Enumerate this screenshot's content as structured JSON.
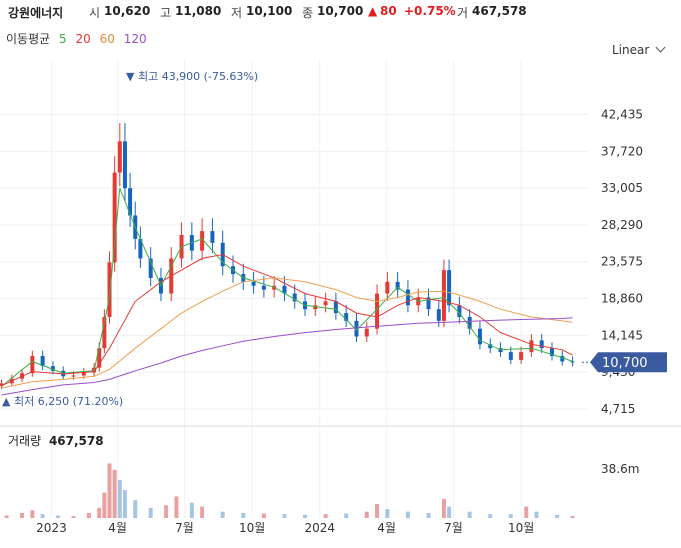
{
  "header": {
    "name": "강원에너지",
    "open_label": "시",
    "open": "10,620",
    "high_label": "고",
    "high": "11,080",
    "low_label": "저",
    "low": "10,100",
    "close_label": "종",
    "close": "10,700",
    "change": "80",
    "change_pct": "+0.75%",
    "volume_label": "거",
    "volume": "467,578"
  },
  "ma": {
    "label": "이동평균",
    "p5": "5",
    "p20": "20",
    "p60": "60",
    "p120": "120",
    "colors": {
      "p5": "#3cb043",
      "p20": "#e53935",
      "p60": "#f0a050",
      "p120": "#9c4dcc"
    }
  },
  "scale_mode": "Linear",
  "price_badge": "10,700",
  "annotations": {
    "high_text": "최고 43,900 (-75.63%)",
    "low_text": "최저 6,250 (71.20%)"
  },
  "volume_panel": {
    "title": "거래량",
    "value": "467,578",
    "axis_label": "38.6m"
  },
  "colors": {
    "up": "#e53935",
    "down": "#1565c0",
    "badge": "#3a5ba0",
    "vol_up": "#e8a0a0",
    "vol_down": "#a8c4e4"
  },
  "chart_data": {
    "type": "candlestick",
    "y_ticks": [
      "42,435",
      "37,720",
      "33,005",
      "28,290",
      "23,575",
      "18,860",
      "14,145",
      "9,430",
      "4,715"
    ],
    "y_tick_values": [
      42435,
      37720,
      33005,
      28290,
      23575,
      18860,
      14145,
      9430,
      4715
    ],
    "ylim": [
      3300,
      47500
    ],
    "x_ticks": [
      "2023",
      "4월",
      "7월",
      "10월",
      "2024",
      "4월",
      "7월",
      "10월"
    ],
    "x_tick_dates": [
      "2023-01-01",
      "2023-04-01",
      "2023-07-01",
      "2023-10-01",
      "2024-01-01",
      "2024-04-01",
      "2024-07-01",
      "2024-10-01"
    ],
    "xlim": [
      "2022-10-23",
      "2024-12-31"
    ],
    "candles": [
      {
        "date": "2022-10-25",
        "close": 8000
      },
      {
        "date": "2022-11-08",
        "close": 8600
      },
      {
        "date": "2022-11-22",
        "close": 9300
      },
      {
        "date": "2022-12-06",
        "close": 11500
      },
      {
        "date": "2022-12-20",
        "close": 10200
      },
      {
        "date": "2023-01-03",
        "close": 9600
      },
      {
        "date": "2023-01-17",
        "close": 8900
      },
      {
        "date": "2023-01-31",
        "close": 9000
      },
      {
        "date": "2023-02-14",
        "close": 9400
      },
      {
        "date": "2023-02-28",
        "close": 10000
      },
      {
        "date": "2023-03-07",
        "close": 12500
      },
      {
        "date": "2023-03-14",
        "close": 16500
      },
      {
        "date": "2023-03-21",
        "close": 23500
      },
      {
        "date": "2023-03-28",
        "close": 35000
      },
      {
        "date": "2023-04-04",
        "close": 39000
      },
      {
        "date": "2023-04-11",
        "close": 33000
      },
      {
        "date": "2023-04-18",
        "close": 29500
      },
      {
        "date": "2023-04-25",
        "close": 26500
      },
      {
        "date": "2023-05-02",
        "close": 24000
      },
      {
        "date": "2023-05-16",
        "close": 21500
      },
      {
        "date": "2023-05-30",
        "close": 19500
      },
      {
        "date": "2023-06-13",
        "close": 24000
      },
      {
        "date": "2023-06-27",
        "close": 27000
      },
      {
        "date": "2023-07-11",
        "close": 25000
      },
      {
        "date": "2023-07-25",
        "close": 27500
      },
      {
        "date": "2023-08-08",
        "close": 26000
      },
      {
        "date": "2023-08-22",
        "close": 23000
      },
      {
        "date": "2023-09-05",
        "close": 22000
      },
      {
        "date": "2023-09-19",
        "close": 21000
      },
      {
        "date": "2023-10-03",
        "close": 20500
      },
      {
        "date": "2023-10-17",
        "close": 20000
      },
      {
        "date": "2023-10-31",
        "close": 20500
      },
      {
        "date": "2023-11-14",
        "close": 19500
      },
      {
        "date": "2023-11-28",
        "close": 18500
      },
      {
        "date": "2023-12-12",
        "close": 17500
      },
      {
        "date": "2023-12-26",
        "close": 18000
      },
      {
        "date": "2024-01-09",
        "close": 18500
      },
      {
        "date": "2024-01-23",
        "close": 17000
      },
      {
        "date": "2024-02-06",
        "close": 16000
      },
      {
        "date": "2024-02-20",
        "close": 14000
      },
      {
        "date": "2024-03-05",
        "close": 15000
      },
      {
        "date": "2024-03-19",
        "close": 19500
      },
      {
        "date": "2024-04-02",
        "close": 21000
      },
      {
        "date": "2024-04-16",
        "close": 20000
      },
      {
        "date": "2024-04-30",
        "close": 18000
      },
      {
        "date": "2024-05-14",
        "close": 19000
      },
      {
        "date": "2024-05-28",
        "close": 17500
      },
      {
        "date": "2024-06-11",
        "close": 16000
      },
      {
        "date": "2024-06-18",
        "close": 22500
      },
      {
        "date": "2024-06-25",
        "close": 18000
      },
      {
        "date": "2024-07-09",
        "close": 16500
      },
      {
        "date": "2024-07-23",
        "close": 15000
      },
      {
        "date": "2024-08-06",
        "close": 13000
      },
      {
        "date": "2024-08-20",
        "close": 12500
      },
      {
        "date": "2024-09-03",
        "close": 12000
      },
      {
        "date": "2024-09-17",
        "close": 11000
      },
      {
        "date": "2024-10-01",
        "close": 12000
      },
      {
        "date": "2024-10-15",
        "close": 13500
      },
      {
        "date": "2024-10-29",
        "close": 12500
      },
      {
        "date": "2024-11-12",
        "close": 11500
      },
      {
        "date": "2024-11-26",
        "close": 10800
      },
      {
        "date": "2024-12-10",
        "close": 10700
      }
    ],
    "ma_series": [
      {
        "name": "5",
        "points": [
          [
            "2022-10-25",
            7600
          ],
          [
            "2022-12-06",
            10800
          ],
          [
            "2023-01-17",
            9300
          ],
          [
            "2023-02-28",
            9600
          ],
          [
            "2023-03-21",
            19000
          ],
          [
            "2023-04-04",
            33000
          ],
          [
            "2023-04-25",
            28000
          ],
          [
            "2023-05-30",
            20500
          ],
          [
            "2023-06-27",
            25500
          ],
          [
            "2023-07-25",
            26500
          ],
          [
            "2023-08-22",
            23500
          ],
          [
            "2023-09-19",
            21500
          ],
          [
            "2023-10-31",
            20300
          ],
          [
            "2023-12-12",
            18000
          ],
          [
            "2024-01-23",
            17500
          ],
          [
            "2024-02-20",
            14800
          ],
          [
            "2024-03-19",
            17500
          ],
          [
            "2024-04-16",
            20300
          ],
          [
            "2024-05-14",
            18500
          ],
          [
            "2024-06-18",
            19000
          ],
          [
            "2024-07-09",
            17000
          ],
          [
            "2024-08-06",
            13500
          ],
          [
            "2024-09-03",
            12300
          ],
          [
            "2024-10-15",
            12500
          ],
          [
            "2024-11-26",
            11300
          ],
          [
            "2024-12-10",
            10800
          ]
        ]
      },
      {
        "name": "20",
        "points": [
          [
            "2022-10-25",
            7700
          ],
          [
            "2022-12-06",
            9500
          ],
          [
            "2023-01-17",
            9200
          ],
          [
            "2023-02-28",
            9500
          ],
          [
            "2023-03-21",
            12500
          ],
          [
            "2023-04-25",
            18500
          ],
          [
            "2023-05-30",
            21000
          ],
          [
            "2023-06-27",
            22500
          ],
          [
            "2023-07-25",
            24000
          ],
          [
            "2023-08-22",
            24500
          ],
          [
            "2023-09-19",
            23000
          ],
          [
            "2023-10-31",
            21500
          ],
          [
            "2023-12-12",
            19500
          ],
          [
            "2024-01-23",
            18500
          ],
          [
            "2024-02-20",
            17000
          ],
          [
            "2024-03-19",
            16500
          ],
          [
            "2024-04-16",
            18000
          ],
          [
            "2024-05-14",
            19000
          ],
          [
            "2024-06-18",
            18500
          ],
          [
            "2024-07-09",
            18000
          ],
          [
            "2024-08-06",
            16500
          ],
          [
            "2024-09-03",
            14500
          ],
          [
            "2024-10-15",
            13000
          ],
          [
            "2024-11-26",
            12300
          ],
          [
            "2024-12-10",
            11600
          ]
        ]
      },
      {
        "name": "60",
        "points": [
          [
            "2022-10-25",
            7400
          ],
          [
            "2022-12-06",
            8200
          ],
          [
            "2023-01-17",
            8500
          ],
          [
            "2023-02-28",
            8900
          ],
          [
            "2023-03-21",
            9800
          ],
          [
            "2023-04-25",
            12500
          ],
          [
            "2023-05-30",
            15000
          ],
          [
            "2023-06-27",
            17000
          ],
          [
            "2023-07-25",
            18500
          ],
          [
            "2023-08-22",
            19800
          ],
          [
            "2023-09-19",
            21000
          ],
          [
            "2023-10-31",
            21500
          ],
          [
            "2023-12-12",
            21000
          ],
          [
            "2024-01-23",
            20000
          ],
          [
            "2024-02-20",
            19000
          ],
          [
            "2024-03-19",
            18500
          ],
          [
            "2024-04-16",
            19000
          ],
          [
            "2024-05-14",
            19700
          ],
          [
            "2024-06-18",
            19800
          ],
          [
            "2024-07-09",
            19300
          ],
          [
            "2024-08-06",
            18500
          ],
          [
            "2024-09-03",
            17500
          ],
          [
            "2024-10-15",
            16500
          ],
          [
            "2024-11-26",
            16000
          ],
          [
            "2024-12-10",
            15800
          ]
        ]
      },
      {
        "name": "120",
        "points": [
          [
            "2022-10-25",
            6500
          ],
          [
            "2022-12-06",
            7200
          ],
          [
            "2023-01-17",
            7800
          ],
          [
            "2023-02-28",
            8100
          ],
          [
            "2023-03-21",
            8500
          ],
          [
            "2023-04-25",
            9600
          ],
          [
            "2023-05-30",
            10600
          ],
          [
            "2023-06-27",
            11500
          ],
          [
            "2023-07-25",
            12200
          ],
          [
            "2023-08-22",
            12800
          ],
          [
            "2023-09-19",
            13400
          ],
          [
            "2023-10-31",
            14000
          ],
          [
            "2023-12-12",
            14500
          ],
          [
            "2024-01-23",
            14900
          ],
          [
            "2024-02-20",
            15100
          ],
          [
            "2024-03-19",
            15300
          ],
          [
            "2024-04-16",
            15500
          ],
          [
            "2024-05-14",
            15700
          ],
          [
            "2024-06-18",
            15800
          ],
          [
            "2024-07-09",
            15900
          ],
          [
            "2024-08-06",
            16000
          ],
          [
            "2024-09-03",
            16100
          ],
          [
            "2024-10-15",
            16200
          ],
          [
            "2024-11-26",
            16300
          ],
          [
            "2024-12-10",
            16400
          ]
        ]
      }
    ],
    "volume_ylim": [
      0,
      52000000
    ],
    "volume": [
      {
        "date": "2022-11-01",
        "value": 2000000,
        "up": true
      },
      {
        "date": "2022-11-22",
        "value": 4000000,
        "up": true
      },
      {
        "date": "2022-12-06",
        "value": 6000000,
        "up": true
      },
      {
        "date": "2022-12-20",
        "value": 3000000,
        "up": false
      },
      {
        "date": "2023-01-10",
        "value": 2000000,
        "up": false
      },
      {
        "date": "2023-01-31",
        "value": 1500000,
        "up": true
      },
      {
        "date": "2023-02-21",
        "value": 4000000,
        "up": true
      },
      {
        "date": "2023-03-07",
        "value": 8000000,
        "up": true
      },
      {
        "date": "2023-03-14",
        "value": 20000000,
        "up": true
      },
      {
        "date": "2023-03-21",
        "value": 43000000,
        "up": true
      },
      {
        "date": "2023-03-28",
        "value": 38000000,
        "up": true
      },
      {
        "date": "2023-04-04",
        "value": 30000000,
        "up": false
      },
      {
        "date": "2023-04-11",
        "value": 22000000,
        "up": false
      },
      {
        "date": "2023-04-25",
        "value": 14000000,
        "up": false
      },
      {
        "date": "2023-05-16",
        "value": 8000000,
        "up": false
      },
      {
        "date": "2023-06-06",
        "value": 10000000,
        "up": true
      },
      {
        "date": "2023-06-20",
        "value": 17000000,
        "up": true
      },
      {
        "date": "2023-07-11",
        "value": 12000000,
        "up": false
      },
      {
        "date": "2023-07-25",
        "value": 9000000,
        "up": true
      },
      {
        "date": "2023-08-22",
        "value": 5000000,
        "up": false
      },
      {
        "date": "2023-09-19",
        "value": 4000000,
        "up": false
      },
      {
        "date": "2023-10-17",
        "value": 3500000,
        "up": true
      },
      {
        "date": "2023-11-14",
        "value": 3000000,
        "up": false
      },
      {
        "date": "2023-12-12",
        "value": 2500000,
        "up": false
      },
      {
        "date": "2024-01-09",
        "value": 3000000,
        "up": true
      },
      {
        "date": "2024-02-06",
        "value": 3500000,
        "up": false
      },
      {
        "date": "2024-03-05",
        "value": 5000000,
        "up": true
      },
      {
        "date": "2024-03-19",
        "value": 11000000,
        "up": true
      },
      {
        "date": "2024-04-02",
        "value": 7000000,
        "up": false
      },
      {
        "date": "2024-04-30",
        "value": 5000000,
        "up": false
      },
      {
        "date": "2024-05-28",
        "value": 4000000,
        "up": false
      },
      {
        "date": "2024-06-18",
        "value": 15000000,
        "up": true
      },
      {
        "date": "2024-06-25",
        "value": 9000000,
        "up": false
      },
      {
        "date": "2024-07-23",
        "value": 5000000,
        "up": false
      },
      {
        "date": "2024-08-20",
        "value": 3000000,
        "up": false
      },
      {
        "date": "2024-09-17",
        "value": 3000000,
        "up": false
      },
      {
        "date": "2024-10-08",
        "value": 9000000,
        "up": true
      },
      {
        "date": "2024-10-22",
        "value": 5000000,
        "up": false
      },
      {
        "date": "2024-11-19",
        "value": 2500000,
        "up": false
      },
      {
        "date": "2024-12-10",
        "value": 1500000,
        "up": true
      }
    ]
  }
}
